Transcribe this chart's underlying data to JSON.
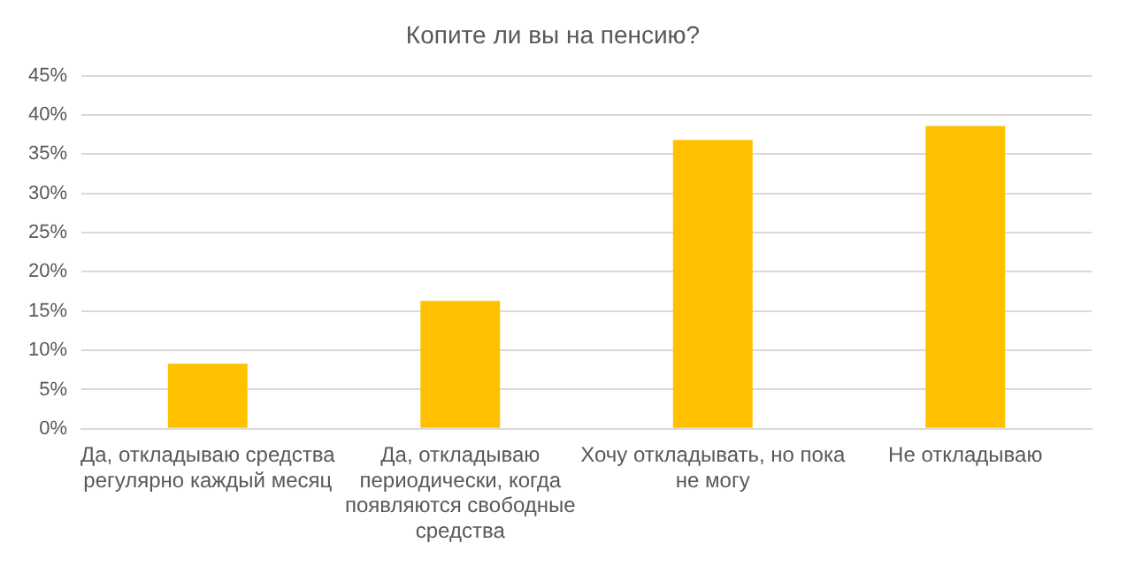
{
  "chart_data": {
    "type": "bar",
    "title": "Копите ли вы на пенсию?",
    "categories": [
      "Да, откладываю средства регулярно каждый месяц",
      "Да, откладываю периодически, когда появляются свободные средства",
      "Хочу откладывать, но пока не могу",
      "Не откладываю"
    ],
    "values": [
      8.3,
      16.3,
      36.8,
      38.6
    ],
    "color": "#ffc000",
    "ylim": [
      0,
      45
    ],
    "yticks": [
      {
        "value": 0,
        "label": "0%"
      },
      {
        "value": 5,
        "label": "5%"
      },
      {
        "value": 10,
        "label": "10%"
      },
      {
        "value": 15,
        "label": "15%"
      },
      {
        "value": 20,
        "label": "20%"
      },
      {
        "value": 25,
        "label": "25%"
      },
      {
        "value": 30,
        "label": "30%"
      },
      {
        "value": 35,
        "label": "35%"
      },
      {
        "value": 40,
        "label": "40%"
      },
      {
        "value": 45,
        "label": "45%"
      }
    ],
    "grid": "y"
  }
}
